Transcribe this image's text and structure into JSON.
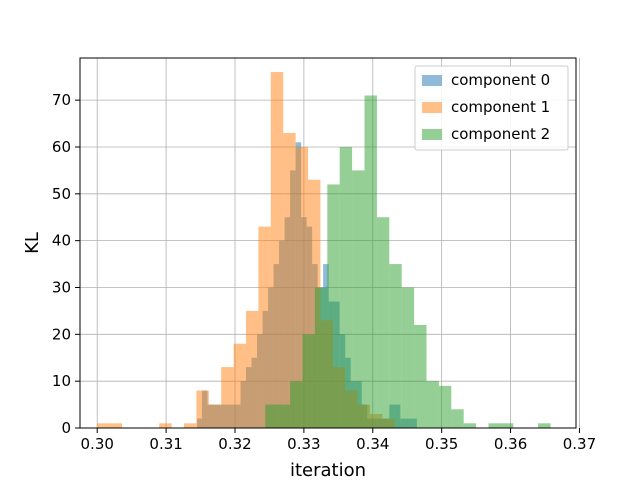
{
  "chart_data": {
    "type": "bar",
    "title": "",
    "xlabel": "iteration",
    "ylabel": "KL",
    "xlim": [
      0.2975,
      0.3695
    ],
    "ylim": [
      0,
      79
    ],
    "xticks": [
      0.3,
      0.31,
      0.32,
      0.33,
      0.34,
      0.35,
      0.36,
      0.37
    ],
    "xtick_labels": [
      "0.30",
      "0.31",
      "0.32",
      "0.33",
      "0.34",
      "0.35",
      "0.36",
      "0.37"
    ],
    "yticks": [
      0,
      10,
      20,
      30,
      40,
      50,
      60,
      70
    ],
    "ytick_labels": [
      "0",
      "10",
      "20",
      "30",
      "40",
      "50",
      "60",
      "70"
    ],
    "grid": true,
    "legend_position": "top-right",
    "series": [
      {
        "name": "component 0",
        "color": "#1f77b4",
        "opacity": 0.5,
        "bin_edges": [
          0.3145,
          0.3152,
          0.316,
          0.3168,
          0.3176,
          0.3184,
          0.3192,
          0.32,
          0.3208,
          0.3216,
          0.3224,
          0.3232,
          0.324,
          0.3248,
          0.3256,
          0.3264,
          0.3272,
          0.328,
          0.3288,
          0.3296,
          0.3304,
          0.3312,
          0.332,
          0.3328,
          0.3336,
          0.3344,
          0.3352,
          0.336,
          0.3368,
          0.3376,
          0.3384,
          0.3392,
          0.34,
          0.3408,
          0.3416,
          0.3424,
          0.3432,
          0.344,
          0.3448,
          0.3456,
          0.3464
        ],
        "counts": [
          2,
          8,
          5,
          5,
          5,
          5,
          5,
          5,
          10,
          13,
          15,
          20,
          25,
          30,
          35,
          40,
          45,
          55,
          61,
          45,
          43,
          35,
          30,
          35,
          27,
          27,
          20,
          15,
          10,
          10,
          5,
          2,
          2,
          2,
          2,
          5,
          5,
          2,
          2,
          2
        ]
      },
      {
        "name": "component 1",
        "color": "#ff7f0e",
        "opacity": 0.5,
        "bin_edges": [
          0.3,
          0.3018,
          0.3036,
          0.3054,
          0.3072,
          0.309,
          0.3108,
          0.3126,
          0.3144,
          0.3162,
          0.318,
          0.3198,
          0.3216,
          0.3234,
          0.3252,
          0.327,
          0.3288,
          0.3306,
          0.3324,
          0.3342,
          0.336,
          0.3378,
          0.3396,
          0.3414,
          0.3432,
          0.345
        ],
        "counts": [
          1,
          1,
          0,
          0,
          0,
          1,
          0,
          1,
          8,
          5,
          13,
          18,
          25,
          43,
          76,
          63,
          60,
          53,
          23,
          13,
          8,
          5,
          3,
          2,
          0
        ]
      },
      {
        "name": "component 2",
        "color": "#2ca02c",
        "opacity": 0.5,
        "bin_edges": [
          0.3244,
          0.3262,
          0.328,
          0.3298,
          0.3316,
          0.3334,
          0.3352,
          0.337,
          0.3388,
          0.3406,
          0.3424,
          0.3442,
          0.346,
          0.3478,
          0.3496,
          0.3514,
          0.3532,
          0.355,
          0.3568,
          0.3586,
          0.3604,
          0.3622,
          0.364,
          0.3658,
          0.3676
        ],
        "counts": [
          5,
          5,
          10,
          20,
          30,
          52,
          60,
          55,
          71,
          45,
          35,
          30,
          22,
          10,
          9,
          4,
          1,
          0,
          1,
          1,
          0,
          0,
          1,
          0
        ]
      }
    ]
  }
}
